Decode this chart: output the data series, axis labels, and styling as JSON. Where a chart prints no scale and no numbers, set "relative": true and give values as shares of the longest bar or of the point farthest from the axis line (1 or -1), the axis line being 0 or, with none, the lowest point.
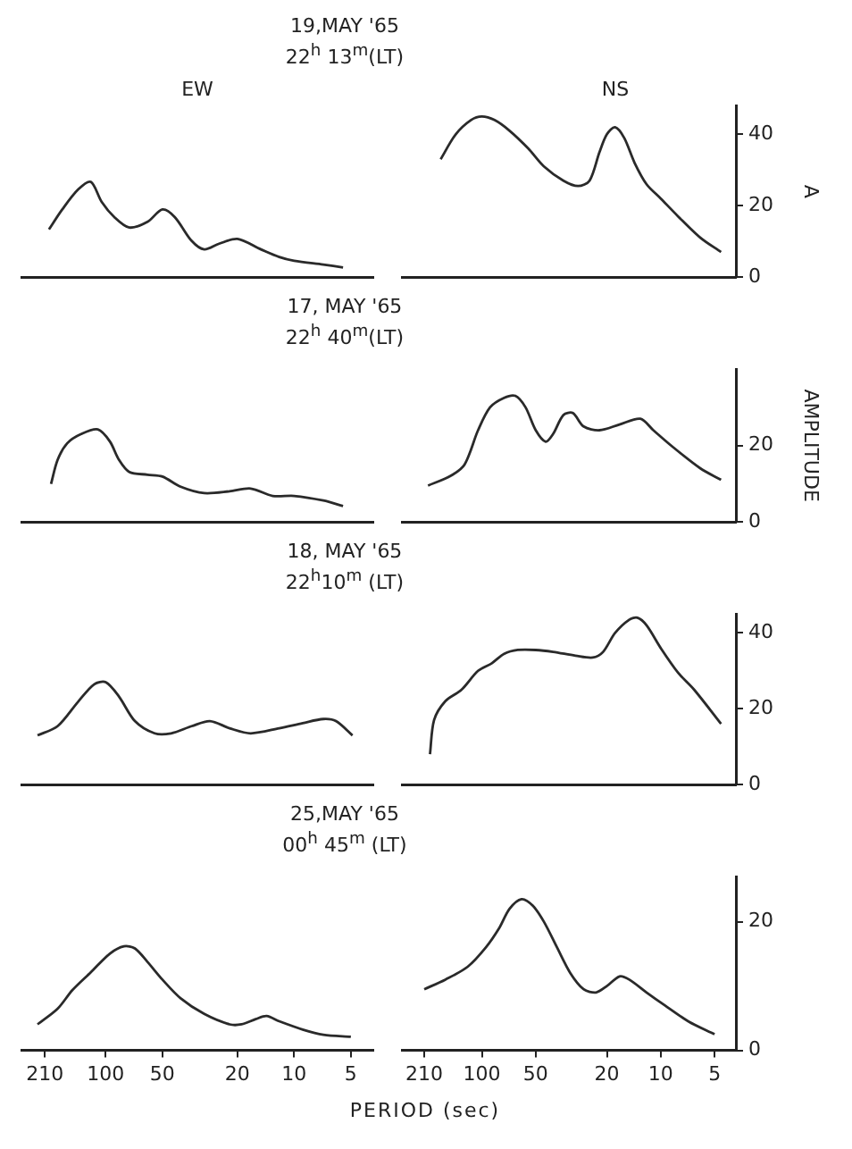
{
  "chart_data": [
    {
      "type": "line",
      "title": "EW",
      "annotations": [
        "19,MAY '65",
        "22$^{h}$ 13$^{m}$(LT)"
      ],
      "relative": true,
      "log": "x",
      "tick_labels": false,
      "color": "#2a2a2a",
      "marker": "none",
      "xlim": [
        280,
        3.8
      ],
      "xticks": [
        210,
        100,
        50,
        20,
        10,
        5
      ],
      "x": [
        200,
        170,
        140,
        120,
        105,
        90,
        75,
        60,
        50,
        43,
        35,
        30,
        25,
        20,
        15,
        12,
        10,
        7,
        5.5
      ],
      "values": [
        0.5,
        0.71,
        0.92,
        1,
        0.79,
        0.63,
        0.52,
        0.58,
        0.71,
        0.63,
        0.38,
        0.29,
        0.35,
        0.4,
        0.29,
        0.21,
        0.17,
        0.13,
        0.1
      ]
    },
    {
      "type": "line",
      "title": "NS",
      "ylabel": "A",
      "log": "x",
      "tick_labels": "y",
      "color": "#2a2a2a",
      "marker": "none",
      "xlim": [
        280,
        3.8
      ],
      "xticks": [
        210,
        100,
        50,
        20,
        10,
        5
      ],
      "ylim": [
        0,
        48
      ],
      "yticks": [
        0,
        20,
        40
      ],
      "x": [
        170,
        140,
        115,
        100,
        85,
        70,
        55,
        45,
        35,
        29,
        25,
        22,
        20,
        18,
        16,
        14,
        12,
        10,
        8,
        6,
        4.6
      ],
      "values": [
        33,
        40,
        44,
        45,
        44,
        41,
        36,
        31,
        27,
        25.5,
        27,
        35,
        40,
        42,
        39,
        32,
        26,
        22,
        17,
        11,
        7
      ]
    },
    {
      "type": "line",
      "annotations": [
        "17, MAY '65",
        "22$^{h}$ 40$^{m}$(LT)"
      ],
      "relative": true,
      "log": "x",
      "tick_labels": false,
      "color": "#2a2a2a",
      "marker": "none",
      "xlim": [
        280,
        3.8
      ],
      "xticks": [
        210,
        100,
        50,
        20,
        10,
        5
      ],
      "x": [
        195,
        180,
        160,
        135,
        110,
        95,
        85,
        75,
        60,
        50,
        40,
        30,
        22,
        17,
        13,
        10,
        7,
        5.5
      ],
      "values": [
        0.41,
        0.67,
        0.85,
        0.95,
        1,
        0.87,
        0.67,
        0.54,
        0.51,
        0.49,
        0.38,
        0.31,
        0.33,
        0.36,
        0.28,
        0.28,
        0.23,
        0.17
      ]
    },
    {
      "type": "line",
      "ylabel": "AMPLITUDE",
      "log": "x",
      "tick_labels": "y",
      "color": "#2a2a2a",
      "marker": "none",
      "xlim": [
        280,
        3.8
      ],
      "xticks": [
        210,
        100,
        50,
        20,
        10,
        5
      ],
      "ylim": [
        0,
        40
      ],
      "yticks": [
        0,
        20
      ],
      "x": [
        200,
        150,
        125,
        105,
        90,
        75,
        65,
        57,
        50,
        44,
        40,
        35,
        31,
        27,
        22,
        17,
        13,
        11,
        8.5,
        6,
        4.6
      ],
      "values": [
        9.5,
        12,
        15,
        24,
        30,
        32.5,
        33,
        30,
        24,
        21,
        23,
        28,
        28.5,
        25,
        24,
        25.5,
        27,
        24,
        19.5,
        14,
        11
      ]
    },
    {
      "type": "line",
      "annotations": [
        "18, MAY '65",
        "22$^{h}$10$^{m}$ (LT)"
      ],
      "relative": true,
      "log": "x",
      "tick_labels": false,
      "color": "#2a2a2a",
      "marker": "none",
      "xlim": [
        280,
        3.8
      ],
      "xticks": [
        210,
        100,
        50,
        20,
        10,
        5
      ],
      "x": [
        230,
        180,
        140,
        115,
        100,
        85,
        70,
        55,
        45,
        35,
        28,
        22,
        17,
        12,
        9,
        7,
        6,
        4.9
      ],
      "values": [
        0.48,
        0.57,
        0.81,
        0.98,
        1,
        0.86,
        0.62,
        0.5,
        0.5,
        0.57,
        0.62,
        0.55,
        0.5,
        0.55,
        0.6,
        0.64,
        0.62,
        0.48
      ]
    },
    {
      "type": "line",
      "log": "x",
      "tick_labels": "y",
      "color": "#2a2a2a",
      "marker": "none",
      "xlim": [
        280,
        3.8
      ],
      "xticks": [
        210,
        100,
        50,
        20,
        10,
        5
      ],
      "ylim": [
        0,
        45
      ],
      "yticks": [
        0,
        20,
        40
      ],
      "x": [
        195,
        185,
        160,
        130,
        105,
        88,
        75,
        63,
        50,
        40,
        30,
        24,
        21,
        18,
        15,
        13.5,
        12,
        10,
        8,
        6.5,
        4.6
      ],
      "values": [
        8,
        17,
        22,
        25,
        30,
        32,
        34.5,
        35.5,
        35.5,
        35,
        34,
        33.5,
        35,
        40,
        43.5,
        44,
        42,
        36,
        29.5,
        25,
        16
      ]
    },
    {
      "type": "line",
      "annotations": [
        "25,MAY '65",
        "00$^{h}$ 45$^{m}$ (LT)"
      ],
      "xlabel": "PERIOD (sec)",
      "relative": true,
      "log": "x",
      "tick_labels": "x",
      "color": "#2a2a2a",
      "marker": "none",
      "xlim": [
        280,
        3.8
      ],
      "xticks": [
        210,
        100,
        50,
        20,
        10,
        5
      ],
      "x": [
        230,
        180,
        150,
        120,
        95,
        80,
        70,
        60,
        50,
        40,
        30,
        22,
        19,
        16,
        14,
        12,
        9,
        7,
        5
      ],
      "values": [
        0.25,
        0.4,
        0.58,
        0.75,
        0.93,
        1,
        0.98,
        0.85,
        0.68,
        0.5,
        0.35,
        0.25,
        0.25,
        0.3,
        0.33,
        0.28,
        0.2,
        0.15,
        0.13
      ]
    },
    {
      "type": "line",
      "log": "x",
      "color": "#2a2a2a",
      "marker": "none",
      "xlim": [
        280,
        3.8
      ],
      "xticks": [
        210,
        100,
        50,
        20,
        10,
        5
      ],
      "ylim": [
        0,
        27
      ],
      "yticks": [
        0,
        20
      ],
      "x": [
        210,
        160,
        120,
        95,
        80,
        70,
        60,
        52,
        45,
        38,
        32,
        27,
        23,
        20,
        17,
        15,
        12,
        9.5,
        7,
        5
      ],
      "values": [
        9.5,
        11,
        13,
        16,
        19,
        22,
        23.5,
        22.5,
        20,
        16,
        12,
        9.5,
        9,
        10,
        11.5,
        11,
        9,
        7,
        4.5,
        2.5
      ]
    }
  ]
}
